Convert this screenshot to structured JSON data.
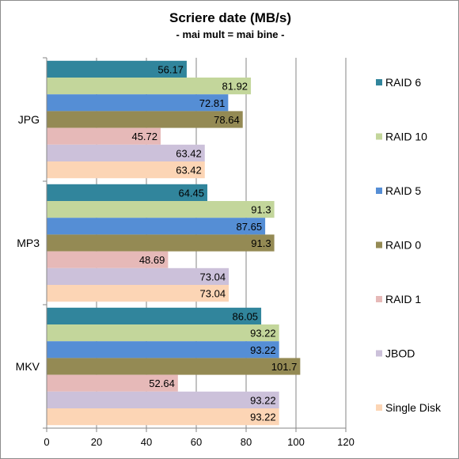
{
  "chart_data": {
    "type": "bar",
    "orientation": "horizontal",
    "title": "Scriere date (MB/s)",
    "subtitle": "- mai mult = mai bine -",
    "categories": [
      "JPG",
      "MP3",
      "MKV"
    ],
    "xlim": [
      0,
      120
    ],
    "xticks": [
      "0",
      "20",
      "40",
      "60",
      "80",
      "100",
      "120"
    ],
    "grid": "vertical",
    "legend_position": "right",
    "series": [
      {
        "name": "RAID 6",
        "color": "#31859c",
        "values": [
          56.17,
          64.45,
          86.05
        ],
        "labels": [
          "56.17",
          "64.45",
          "86.05"
        ]
      },
      {
        "name": "RAID 10",
        "color": "#c3d69b",
        "values": [
          81.92,
          91.3,
          93.22
        ],
        "labels": [
          "81.92",
          "91.3",
          "93.22"
        ]
      },
      {
        "name": "RAID 5",
        "color": "#558ed5",
        "values": [
          72.81,
          87.65,
          93.22
        ],
        "labels": [
          "72.81",
          "87.65",
          "93.22"
        ]
      },
      {
        "name": "RAID 0",
        "color": "#948a54",
        "values": [
          78.64,
          91.3,
          101.7
        ],
        "labels": [
          "78.64",
          "91.3",
          "101.7"
        ]
      },
      {
        "name": "RAID 1",
        "color": "#e6b9b8",
        "values": [
          45.72,
          48.69,
          52.64
        ],
        "labels": [
          "45.72",
          "48.69",
          "52.64"
        ]
      },
      {
        "name": "JBOD",
        "color": "#ccc1da",
        "values": [
          63.42,
          73.04,
          93.22
        ],
        "labels": [
          "63.42",
          "73.04",
          "93.22"
        ]
      },
      {
        "name": "Single Disk",
        "color": "#fcd5b5",
        "values": [
          63.42,
          73.04,
          93.22
        ],
        "labels": [
          "63.42",
          "73.04",
          "93.22"
        ]
      }
    ]
  }
}
